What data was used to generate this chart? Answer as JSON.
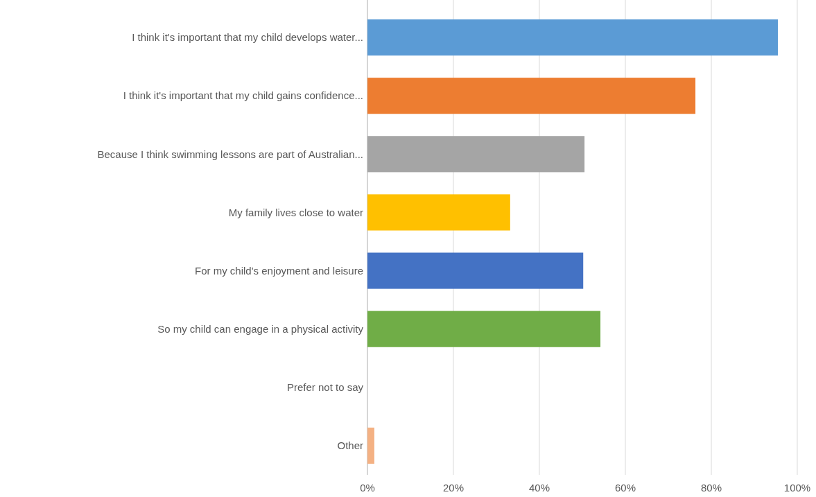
{
  "chart_data": {
    "type": "bar",
    "orientation": "horizontal",
    "categories": [
      "I think it's important that my child develops water...",
      "I think it's important that my child gains confidence...",
      "Because I think swimming lessons are part of Australian...",
      "My family lives close to water",
      "For my child's enjoyment and leisure",
      "So my child can engage in a physical activity",
      "Prefer not to say",
      "Other"
    ],
    "values": [
      95.5,
      76.3,
      50.5,
      33.2,
      50.2,
      54.2,
      0,
      1.6
    ],
    "colors": [
      "#5b9bd5",
      "#ed7d31",
      "#a5a5a5",
      "#ffc000",
      "#4472c4",
      "#70ad47",
      "#255e91",
      "#f4b183"
    ],
    "xlim": [
      0,
      100
    ],
    "xticks": [
      {
        "value": 0,
        "label": "0%"
      },
      {
        "value": 20,
        "label": "20%"
      },
      {
        "value": 40,
        "label": "40%"
      },
      {
        "value": 60,
        "label": "60%"
      },
      {
        "value": 80,
        "label": "80%"
      },
      {
        "value": 100,
        "label": "100%"
      }
    ],
    "grid": "x"
  }
}
